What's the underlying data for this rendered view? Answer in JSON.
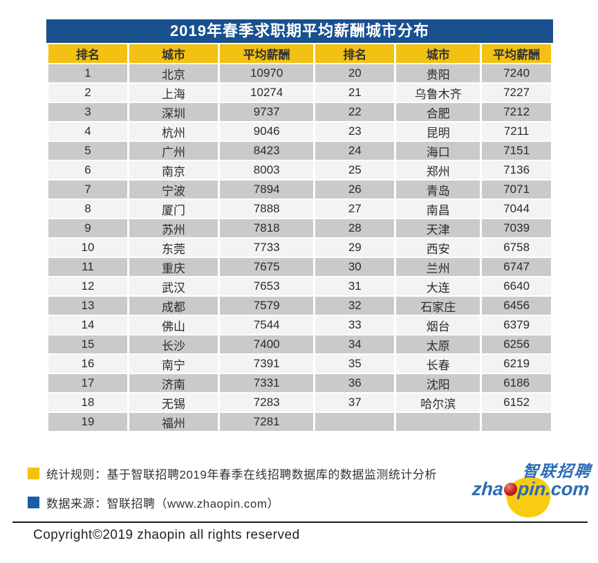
{
  "title": "2019年春季求职期平均薪酬城市分布",
  "table": {
    "headers": [
      "排名",
      "城市",
      "平均薪酬",
      "排名",
      "城市",
      "平均薪酬"
    ],
    "rows": [
      [
        "1",
        "北京",
        "10970",
        "20",
        "贵阳",
        "7240"
      ],
      [
        "2",
        "上海",
        "10274",
        "21",
        "乌鲁木齐",
        "7227"
      ],
      [
        "3",
        "深圳",
        "9737",
        "22",
        "合肥",
        "7212"
      ],
      [
        "4",
        "杭州",
        "9046",
        "23",
        "昆明",
        "7211"
      ],
      [
        "5",
        "广州",
        "8423",
        "24",
        "海口",
        "7151"
      ],
      [
        "6",
        "南京",
        "8003",
        "25",
        "郑州",
        "7136"
      ],
      [
        "7",
        "宁波",
        "7894",
        "26",
        "青岛",
        "7071"
      ],
      [
        "8",
        "厦门",
        "7888",
        "27",
        "南昌",
        "7044"
      ],
      [
        "9",
        "苏州",
        "7818",
        "28",
        "天津",
        "7039"
      ],
      [
        "10",
        "东莞",
        "7733",
        "29",
        "西安",
        "6758"
      ],
      [
        "11",
        "重庆",
        "7675",
        "30",
        "兰州",
        "6747"
      ],
      [
        "12",
        "武汉",
        "7653",
        "31",
        "大连",
        "6640"
      ],
      [
        "13",
        "成都",
        "7579",
        "32",
        "石家庄",
        "6456"
      ],
      [
        "14",
        "佛山",
        "7544",
        "33",
        "烟台",
        "6379"
      ],
      [
        "15",
        "长沙",
        "7400",
        "34",
        "太原",
        "6256"
      ],
      [
        "16",
        "南宁",
        "7391",
        "35",
        "长春",
        "6219"
      ],
      [
        "17",
        "济南",
        "7331",
        "36",
        "沈阳",
        "6186"
      ],
      [
        "18",
        "无锡",
        "7283",
        "37",
        "哈尔滨",
        "6152"
      ],
      [
        "19",
        "福州",
        "7281",
        "",
        "",
        ""
      ]
    ]
  },
  "chart_data": {
    "type": "table",
    "title": "2019年春季求职期平均薪酬城市分布",
    "columns": [
      "排名",
      "城市",
      "平均薪酬"
    ],
    "rows": [
      [
        1,
        "北京",
        10970
      ],
      [
        2,
        "上海",
        10274
      ],
      [
        3,
        "深圳",
        9737
      ],
      [
        4,
        "杭州",
        9046
      ],
      [
        5,
        "广州",
        8423
      ],
      [
        6,
        "南京",
        8003
      ],
      [
        7,
        "宁波",
        7894
      ],
      [
        8,
        "厦门",
        7888
      ],
      [
        9,
        "苏州",
        7818
      ],
      [
        10,
        "东莞",
        7733
      ],
      [
        11,
        "重庆",
        7675
      ],
      [
        12,
        "武汉",
        7653
      ],
      [
        13,
        "成都",
        7579
      ],
      [
        14,
        "佛山",
        7544
      ],
      [
        15,
        "长沙",
        7400
      ],
      [
        16,
        "南宁",
        7391
      ],
      [
        17,
        "济南",
        7331
      ],
      [
        18,
        "无锡",
        7283
      ],
      [
        19,
        "福州",
        7281
      ],
      [
        20,
        "贵阳",
        7240
      ],
      [
        21,
        "乌鲁木齐",
        7227
      ],
      [
        22,
        "合肥",
        7212
      ],
      [
        23,
        "昆明",
        7211
      ],
      [
        24,
        "海口",
        7151
      ],
      [
        25,
        "郑州",
        7136
      ],
      [
        26,
        "青岛",
        7071
      ],
      [
        27,
        "南昌",
        7044
      ],
      [
        28,
        "天津",
        7039
      ],
      [
        29,
        "西安",
        6758
      ],
      [
        30,
        "兰州",
        6747
      ],
      [
        31,
        "大连",
        6640
      ],
      [
        32,
        "石家庄",
        6456
      ],
      [
        33,
        "烟台",
        6379
      ],
      [
        34,
        "太原",
        6256
      ],
      [
        35,
        "长春",
        6219
      ],
      [
        36,
        "沈阳",
        6186
      ],
      [
        37,
        "哈尔滨",
        6152
      ]
    ]
  },
  "notes": [
    {
      "label": "统计规则：基于智联招聘2019年春季在线招聘数据库的数据监测统计分析",
      "bullet_color": "#F3C112"
    },
    {
      "label": "数据来源：智联招聘（www.zhaopin.com）",
      "bullet_color": "#1D5CA8"
    }
  ],
  "logo": {
    "cn_text": "智联招聘",
    "en_left": "zha",
    "en_right": "pin.com"
  },
  "copyright": "Copyright©2019 zhaopin all rights reserved",
  "colors": {
    "title_bar": "#19508E",
    "header_yellow": "#F3C112",
    "row_odd": "#CACACA",
    "row_even": "#F3F3F3",
    "note_yellow": "#F3C112",
    "note_blue": "#1D5CA8",
    "logo_blue": "#2B6BB5",
    "logo_yellow": "#F8CC12",
    "logo_red": "#C22115"
  }
}
